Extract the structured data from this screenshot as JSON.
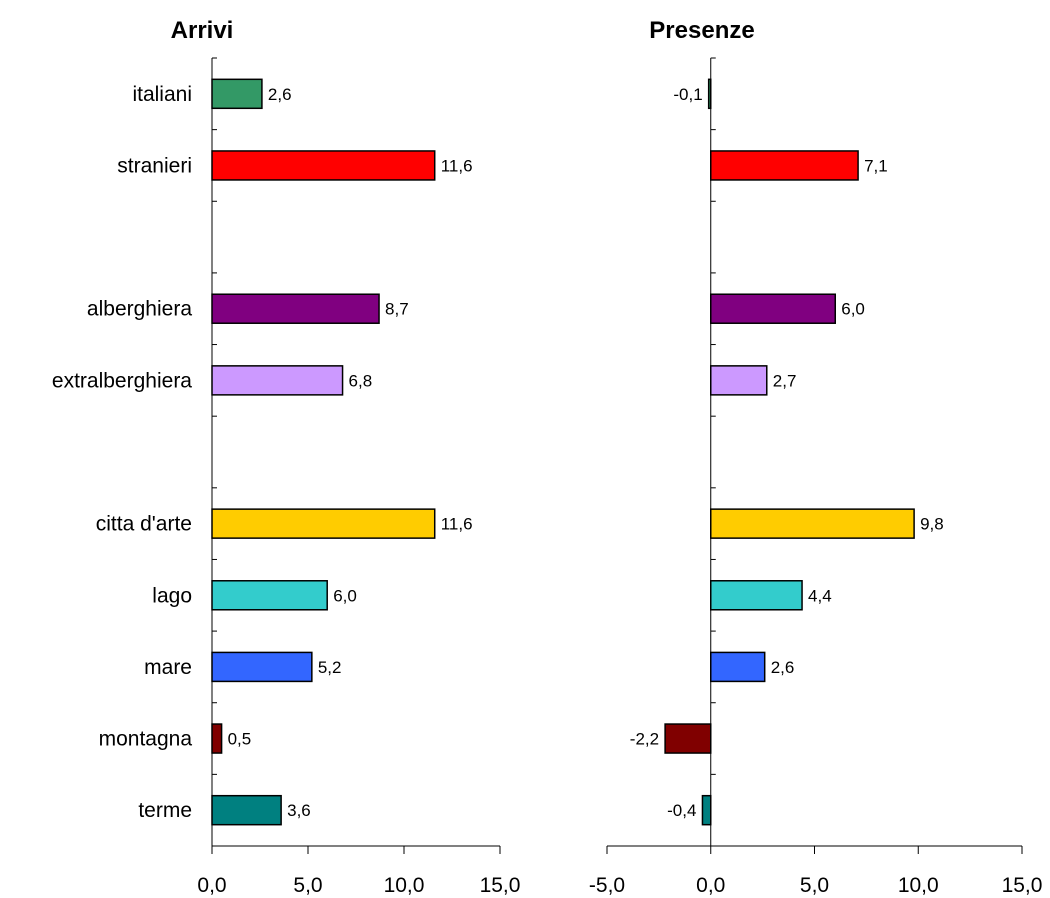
{
  "chart_data": [
    {
      "type": "bar",
      "orientation": "horizontal",
      "title": "Arrivi",
      "categories": [
        "italiani",
        "stranieri",
        "",
        "alberghiera",
        "extralberghiera",
        "",
        "citta d'arte",
        "lago",
        "mare",
        "montagna",
        "terme"
      ],
      "values": [
        2.6,
        11.6,
        null,
        8.7,
        6.8,
        null,
        11.6,
        6.0,
        5.2,
        0.5,
        3.6
      ],
      "value_labels": [
        "2,6",
        "11,6",
        "",
        "8,7",
        "6,8",
        "",
        "11,6",
        "6,0",
        "5,2",
        "0,5",
        "3,6"
      ],
      "xlim": [
        0,
        15
      ],
      "xticks": [
        0,
        5,
        10,
        15
      ],
      "xtick_labels": [
        "0,0",
        "5,0",
        "10,0",
        "15,0"
      ],
      "xlabel": "",
      "ylabel": "",
      "grid": false,
      "legend": "none"
    },
    {
      "type": "bar",
      "orientation": "horizontal",
      "title": "Presenze",
      "categories": [
        "italiani",
        "stranieri",
        "",
        "alberghiera",
        "extralberghiera",
        "",
        "citta d'arte",
        "lago",
        "mare",
        "montagna",
        "terme"
      ],
      "values": [
        -0.1,
        7.1,
        null,
        6.0,
        2.7,
        null,
        9.8,
        4.4,
        2.6,
        -2.2,
        -0.4
      ],
      "value_labels": [
        "-0,1",
        "7,1",
        "",
        "6,0",
        "2,7",
        "",
        "9,8",
        "4,4",
        "2,6",
        "-2,2",
        "-0,4"
      ],
      "xlim": [
        -5,
        15
      ],
      "xticks": [
        -5,
        0,
        5,
        10,
        15
      ],
      "xtick_labels": [
        "-5,0",
        "0,0",
        "5,0",
        "10,0",
        "15,0"
      ],
      "xlabel": "",
      "ylabel": "",
      "grid": false,
      "legend": "none"
    }
  ],
  "colors": [
    "#339966",
    "#ff0000",
    "",
    "#800080",
    "#cc99ff",
    "",
    "#ffcc00",
    "#33cccc",
    "#3366ff",
    "#800000",
    "#008080"
  ]
}
